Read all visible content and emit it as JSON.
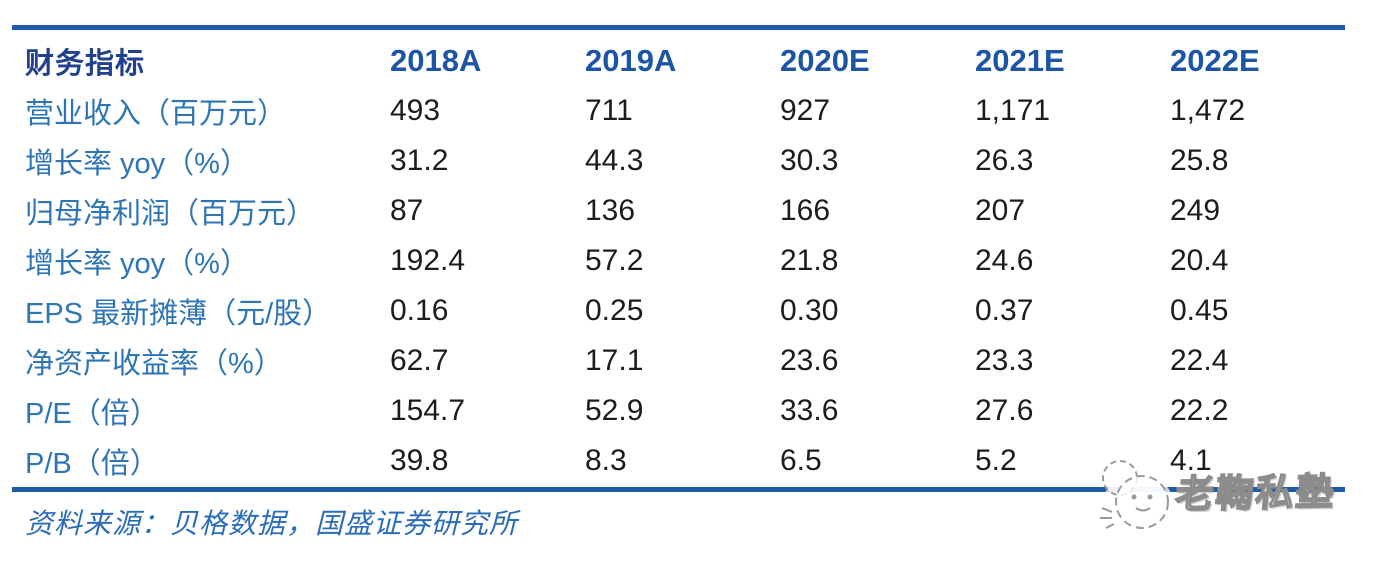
{
  "table": {
    "header": {
      "label": "财务指标",
      "years": [
        "2018A",
        "2019A",
        "2020E",
        "2021E",
        "2022E"
      ]
    },
    "rows": [
      {
        "label": "营业收入（百万元）",
        "values": [
          "493",
          "711",
          "927",
          "1,171",
          "1,472"
        ]
      },
      {
        "label": "增长率 yoy（%）",
        "values": [
          "31.2",
          "44.3",
          "30.3",
          "26.3",
          "25.8"
        ]
      },
      {
        "label": "归母净利润（百万元）",
        "values": [
          "87",
          "136",
          "166",
          "207",
          "249"
        ]
      },
      {
        "label": "增长率 yoy（%）",
        "values": [
          "192.4",
          "57.2",
          "21.8",
          "24.6",
          "20.4"
        ]
      },
      {
        "label": "EPS 最新摊薄（元/股）",
        "values": [
          "0.16",
          "0.25",
          "0.30",
          "0.37",
          "0.45"
        ]
      },
      {
        "label": "净资产收益率（%）",
        "values": [
          "62.7",
          "17.1",
          "23.6",
          "23.3",
          "22.4"
        ]
      },
      {
        "label": "P/E（倍）",
        "values": [
          "154.7",
          "52.9",
          "33.6",
          "27.6",
          "22.2"
        ]
      },
      {
        "label": "P/B（倍）",
        "values": [
          "39.8",
          "8.3",
          "6.5",
          "5.2",
          "4.1"
        ]
      }
    ]
  },
  "footer": {
    "source": "资料来源：贝格数据，国盛证券研究所"
  },
  "watermark": {
    "icon": "mascot-sketch-icon",
    "text": "老鞠私塾"
  },
  "colors": {
    "rule_blue": "#1E5AA8",
    "header_navy": "#22408F",
    "year_blue": "#1D55A6",
    "label_blue": "#2E75B6",
    "value_black": "#1C1C1C",
    "source_blue": "#2B6CB8",
    "watermark_gray": "#8C8C8C"
  }
}
